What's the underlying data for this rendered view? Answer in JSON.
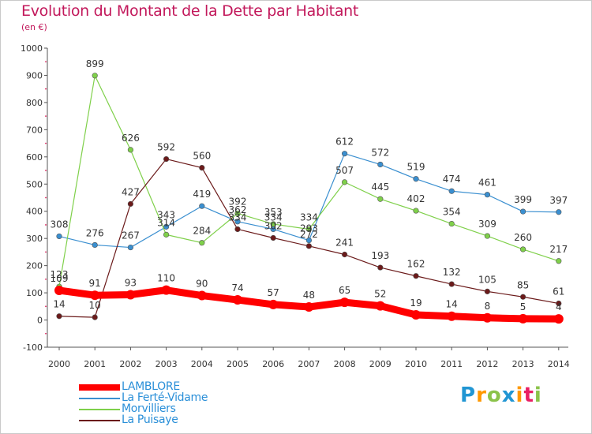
{
  "title": "Evolution du Montant de la Dette par Habitant",
  "unit": "(en €)",
  "brand": {
    "letters": [
      "P",
      "r",
      "o",
      "x",
      "i",
      "t",
      "i"
    ],
    "colors": [
      "#2196d3",
      "#ff9800",
      "#8bc34a",
      "#2196d3",
      "#ff9800",
      "#e91e63",
      "#8bc34a"
    ]
  },
  "chart_data": {
    "type": "line",
    "x": [
      2000,
      2001,
      2002,
      2003,
      2004,
      2005,
      2006,
      2007,
      2008,
      2009,
      2010,
      2011,
      2012,
      2013,
      2014
    ],
    "ylim": [
      -100,
      1000
    ],
    "yticks": [
      -100,
      0,
      100,
      200,
      300,
      400,
      500,
      600,
      700,
      800,
      900,
      1000
    ],
    "grid": false,
    "legend_position": "bottom-left",
    "series": [
      {
        "name": "LAMBLORE",
        "color": "#ff0000",
        "values": [
          109,
          91,
          93,
          110,
          90,
          74,
          57,
          48,
          65,
          52,
          19,
          14,
          8,
          5,
          4
        ]
      },
      {
        "name": "La Ferté-Vidame",
        "color": "#3a8fd0",
        "values": [
          308,
          276,
          267,
          343,
          419,
          362,
          334,
          293,
          612,
          572,
          519,
          474,
          461,
          399,
          397
        ]
      },
      {
        "name": "Morvilliers",
        "color": "#7fd04a",
        "values": [
          123,
          899,
          626,
          314,
          284,
          392,
          353,
          334,
          507,
          445,
          402,
          354,
          309,
          260,
          217
        ]
      },
      {
        "name": "La Puisaye",
        "color": "#6b1a1a",
        "values": [
          14,
          10,
          427,
          592,
          560,
          334,
          302,
          272,
          241,
          193,
          162,
          132,
          105,
          85,
          61
        ]
      }
    ]
  }
}
